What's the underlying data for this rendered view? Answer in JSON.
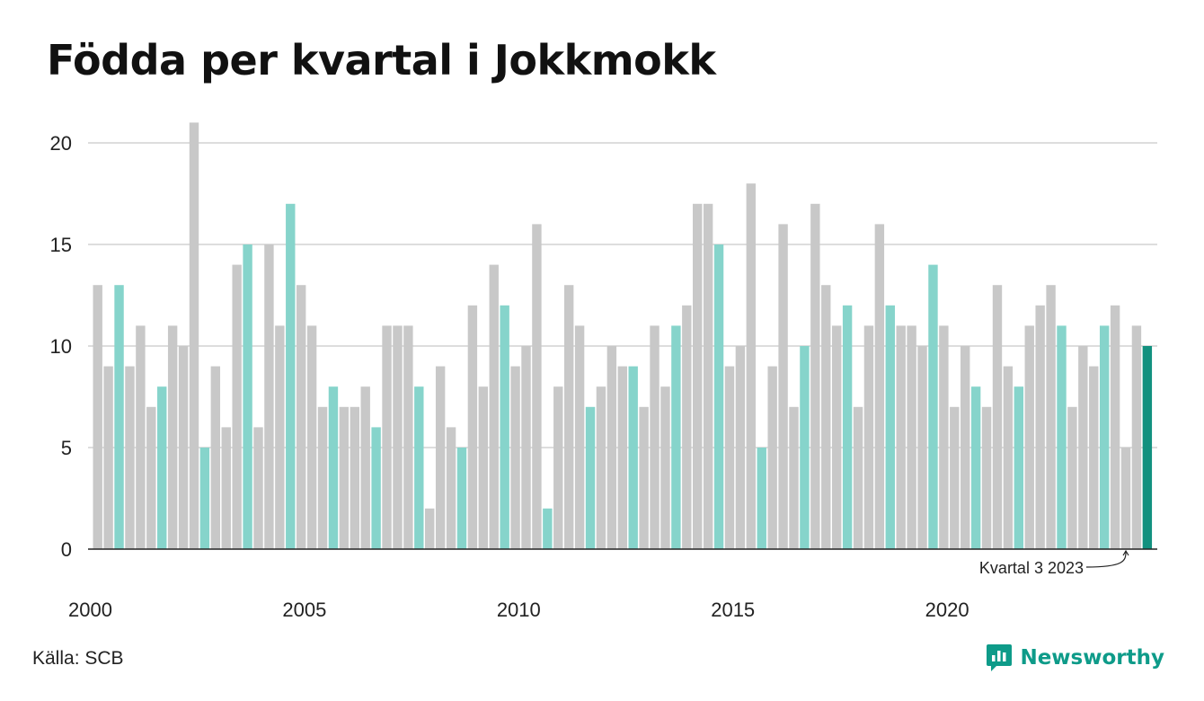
{
  "title": "Födda per kvartal i Jokkmokk",
  "source": "Källa: SCB",
  "brand": {
    "name": "Newsworthy",
    "icon": "newsworthy-logo-icon"
  },
  "colors": {
    "q3": "#86d4cb",
    "other": "#c8c8c8",
    "latest": "#12917f",
    "grid": "#dddddd",
    "axis": "#222222"
  },
  "chart_data": {
    "type": "bar",
    "title": "Födda per kvartal i Jokkmokk",
    "x_start_year": 2000,
    "periods_per_year": 4,
    "highlight_quarter": 3,
    "values": [
      13,
      9,
      13,
      9,
      11,
      7,
      8,
      11,
      10,
      21,
      5,
      9,
      6,
      14,
      15,
      6,
      15,
      11,
      17,
      13,
      11,
      7,
      8,
      7,
      7,
      8,
      6,
      11,
      11,
      11,
      8,
      2,
      9,
      6,
      5,
      12,
      8,
      14,
      12,
      9,
      10,
      16,
      2,
      8,
      13,
      11,
      7,
      8,
      10,
      9,
      9,
      7,
      11,
      8,
      11,
      12,
      17,
      17,
      15,
      9,
      10,
      18,
      5,
      9,
      16,
      7,
      10,
      17,
      13,
      11,
      12,
      7,
      11,
      16,
      12,
      11,
      11,
      10,
      14,
      11,
      7,
      10,
      8,
      7,
      13,
      9,
      8,
      11,
      12,
      13,
      11,
      7,
      10,
      9,
      11,
      12,
      5,
      11,
      10
    ],
    "x_tick_labels": [
      "2000",
      "2005",
      "2010",
      "2015",
      "2020"
    ],
    "y_ticks": [
      0,
      5,
      10,
      15,
      20
    ],
    "ylim": [
      0,
      21
    ],
    "grid": true,
    "annotation": "Kvartal 3 2023"
  }
}
